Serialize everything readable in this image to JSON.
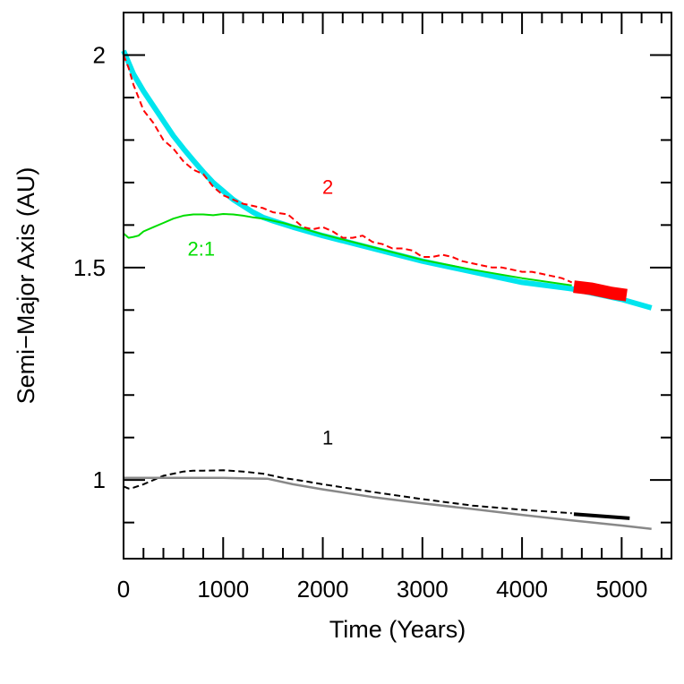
{
  "chart_data": {
    "type": "line",
    "xlabel": "Time (Years)",
    "ylabel": "Semi−Major Axis (AU)",
    "xlim": [
      0,
      5500
    ],
    "ylim": [
      0.815,
      2.1
    ],
    "x_ticks": [
      {
        "value": 0,
        "label": "0"
      },
      {
        "value": 1000,
        "label": "1000"
      },
      {
        "value": 2000,
        "label": "2000"
      },
      {
        "value": 3000,
        "label": "3000"
      },
      {
        "value": 4000,
        "label": "4000"
      },
      {
        "value": 5000,
        "label": "5000"
      }
    ],
    "x_minor_step": 200,
    "y_ticks": [
      {
        "value": 1,
        "label": "1"
      },
      {
        "value": 1.5,
        "label": "1.5"
      },
      {
        "value": 2,
        "label": "2"
      }
    ],
    "y_minor_step": 0.1,
    "annotations": [
      {
        "text": "2",
        "x": 2050,
        "y": 1.69,
        "color": "#ff0000"
      },
      {
        "text": "2:1",
        "x": 780,
        "y": 1.545,
        "color": "#00dd00"
      },
      {
        "text": "1",
        "x": 2050,
        "y": 1.1,
        "color": "#000000"
      }
    ],
    "series": [
      {
        "color": "#00e5ee",
        "style": "solid",
        "width": 6,
        "x": [
          0,
          100,
          200,
          300,
          400,
          500,
          600,
          700,
          800,
          900,
          1000,
          1100,
          1200,
          1300,
          1400,
          1500,
          1700,
          2000,
          2500,
          3000,
          3500,
          4000,
          4500,
          5000,
          5300
        ],
        "y": [
          2.01,
          1.955,
          1.915,
          1.88,
          1.845,
          1.81,
          1.78,
          1.752,
          1.725,
          1.7,
          1.68,
          1.66,
          1.645,
          1.63,
          1.618,
          1.61,
          1.595,
          1.575,
          1.545,
          1.515,
          1.49,
          1.465,
          1.45,
          1.425,
          1.405
        ]
      },
      {
        "color": "#ff0000",
        "style": "dashed",
        "width": 2,
        "x": [
          0,
          50,
          100,
          150,
          200,
          300,
          400,
          500,
          600,
          700,
          800,
          900,
          1000,
          1100,
          1200,
          1300,
          1400,
          1500,
          1650,
          1800,
          1900,
          2000,
          2100,
          2200,
          2300,
          2400,
          2500,
          2600,
          2700,
          2800,
          2900,
          3000,
          3100,
          3200,
          3300,
          3400,
          3500,
          3600,
          3700,
          3800,
          3900,
          4000,
          4100,
          4200,
          4300,
          4400,
          4500
        ],
        "y": [
          2.0,
          1.97,
          1.93,
          1.9,
          1.87,
          1.84,
          1.8,
          1.78,
          1.75,
          1.73,
          1.72,
          1.69,
          1.67,
          1.66,
          1.65,
          1.645,
          1.64,
          1.63,
          1.625,
          1.595,
          1.59,
          1.595,
          1.585,
          1.57,
          1.57,
          1.575,
          1.56,
          1.555,
          1.545,
          1.545,
          1.54,
          1.525,
          1.525,
          1.53,
          1.525,
          1.515,
          1.51,
          1.505,
          1.5,
          1.5,
          1.495,
          1.49,
          1.49,
          1.485,
          1.48,
          1.475,
          1.465
        ]
      },
      {
        "color": "#ff0000",
        "style": "solid",
        "width": 14,
        "x": [
          4520,
          4700,
          4900,
          5050
        ],
        "y": [
          1.455,
          1.45,
          1.44,
          1.435
        ]
      },
      {
        "color": "#00dd00",
        "style": "solid",
        "width": 2,
        "x": [
          0,
          50,
          100,
          150,
          200,
          300,
          400,
          500,
          600,
          700,
          800,
          900,
          1000,
          1100,
          1200,
          1300,
          1400,
          1600,
          1800,
          2000,
          2500,
          3000,
          3500,
          4000,
          4500
        ],
        "y": [
          1.58,
          1.57,
          1.572,
          1.575,
          1.585,
          1.595,
          1.605,
          1.615,
          1.622,
          1.625,
          1.625,
          1.623,
          1.626,
          1.625,
          1.622,
          1.618,
          1.615,
          1.605,
          1.592,
          1.578,
          1.548,
          1.518,
          1.495,
          1.475,
          1.458
        ]
      },
      {
        "color": "#000000",
        "style": "dashed",
        "width": 2,
        "x": [
          0,
          50,
          100,
          200,
          300,
          400,
          500,
          600,
          700,
          800,
          1000,
          1200,
          1400,
          1600,
          1800,
          2000,
          2500,
          3000,
          3500,
          4000,
          4500
        ],
        "y": [
          0.985,
          0.98,
          0.982,
          0.99,
          1.0,
          1.01,
          1.015,
          1.02,
          1.022,
          1.022,
          1.023,
          1.02,
          1.015,
          1.005,
          0.998,
          0.99,
          0.972,
          0.955,
          0.94,
          0.93,
          0.922
        ]
      },
      {
        "color": "#000000",
        "style": "solid",
        "width": 4,
        "x": [
          4520,
          5080
        ],
        "y": [
          0.92,
          0.91
        ]
      },
      {
        "color": "#888888",
        "style": "solid",
        "width": 2.5,
        "x": [
          0,
          300,
          600,
          1000,
          1200,
          1450,
          1700,
          2000,
          2500,
          3000,
          3500,
          4000,
          4500,
          5000,
          5300
        ],
        "y": [
          1.005,
          1.005,
          1.005,
          1.005,
          1.004,
          1.003,
          0.99,
          0.978,
          0.96,
          0.945,
          0.932,
          0.918,
          0.905,
          0.893,
          0.885
        ]
      }
    ]
  }
}
